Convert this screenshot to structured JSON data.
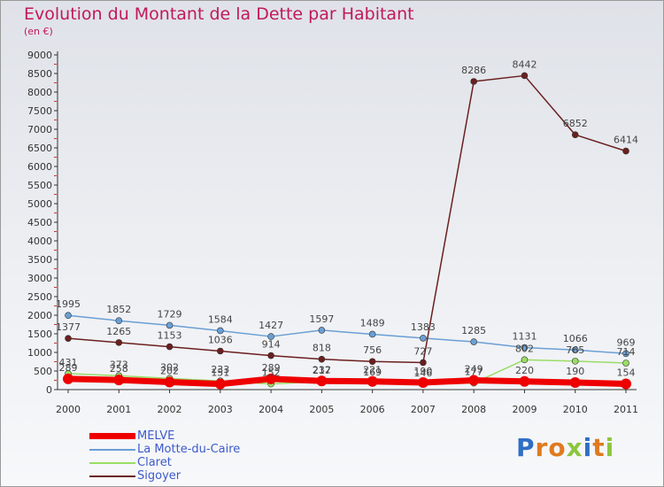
{
  "title": "Evolution du Montant de la Dette par Habitant",
  "subtitle": "(en €)",
  "logo": {
    "letters": [
      "P",
      "r",
      "o",
      "x",
      "i",
      "t",
      "i"
    ],
    "colors": [
      "#2f6fc4",
      "#e07a1f",
      "#e07a1f",
      "#8cc63f",
      "#2f6fc4",
      "#e07a1f",
      "#8cc63f"
    ]
  },
  "chart_data": {
    "type": "line",
    "title": "Evolution du Montant de la Dette par Habitant",
    "ylabel": "(en €)",
    "xlabel": "",
    "ylim": [
      0,
      9000
    ],
    "yticks": [
      0,
      500,
      1000,
      1500,
      2000,
      2500,
      3000,
      3500,
      4000,
      4500,
      5000,
      5500,
      6000,
      6500,
      7000,
      7500,
      8000,
      8500,
      9000
    ],
    "categories": [
      "2000",
      "2001",
      "2002",
      "2003",
      "2004",
      "2005",
      "2006",
      "2007",
      "2008",
      "2009",
      "2010",
      "2011"
    ],
    "grid": false,
    "legend": "bottom-left",
    "series": [
      {
        "name": "MELVE",
        "color": "#ee0000",
        "values": [
          289,
          258,
          202,
          151,
          289,
          232,
          221,
          190,
          249,
          220,
          190,
          154
        ]
      },
      {
        "name": "La Motte-du-Caire",
        "color": "#6a9fd4",
        "values": [
          1995,
          1852,
          1729,
          1584,
          1427,
          1597,
          1489,
          1383,
          1285,
          1131,
          1066,
          969
        ]
      },
      {
        "name": "Claret",
        "color": "#99dd66",
        "values": [
          431,
          373,
          302,
          233,
          152,
          217,
          169,
          146,
          177,
          802,
          765,
          714
        ]
      },
      {
        "name": "Sigoyer",
        "color": "#6b1f1f",
        "values": [
          1377,
          1265,
          1153,
          1036,
          914,
          818,
          756,
          727,
          8286,
          8442,
          6852,
          6414
        ]
      }
    ]
  }
}
